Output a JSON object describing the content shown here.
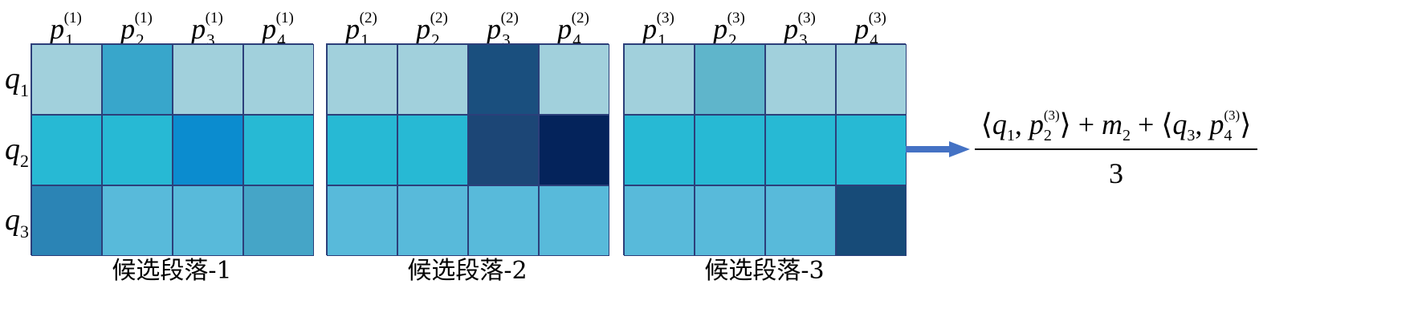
{
  "matrices": [
    {
      "caption": "候选段落-1",
      "headers": [
        {
          "base": "p",
          "sub": "1",
          "sup": "(1)"
        },
        {
          "base": "p",
          "sub": "2",
          "sup": "(1)"
        },
        {
          "base": "p",
          "sub": "3",
          "sup": "(1)"
        },
        {
          "base": "p",
          "sub": "4",
          "sup": "(1)"
        }
      ],
      "cells": [
        [
          "#a1d0dc",
          "#38a6cb",
          "#a1d0dc",
          "#a1d0dc"
        ],
        [
          "#27b9d4",
          "#27b9d4",
          "#0b8ccf",
          "#27b9d4"
        ],
        [
          "#2b84b5",
          "#58bada",
          "#58bada",
          "#45a5c7"
        ]
      ]
    },
    {
      "caption": "候选段落-2",
      "headers": [
        {
          "base": "p",
          "sub": "1",
          "sup": "(2)"
        },
        {
          "base": "p",
          "sub": "2",
          "sup": "(2)"
        },
        {
          "base": "p",
          "sub": "3",
          "sup": "(2)"
        },
        {
          "base": "p",
          "sub": "4",
          "sup": "(2)"
        }
      ],
      "cells": [
        [
          "#a1d0dc",
          "#a1d0dc",
          "#1a4f7e",
          "#a1d0dc"
        ],
        [
          "#27b9d4",
          "#27b9d4",
          "#1c4676",
          "#04235b"
        ],
        [
          "#58bada",
          "#58bada",
          "#58bada",
          "#58bada"
        ]
      ]
    },
    {
      "caption": "候选段落-3",
      "headers": [
        {
          "base": "p",
          "sub": "1",
          "sup": "(3)"
        },
        {
          "base": "p",
          "sub": "2",
          "sup": "(3)"
        },
        {
          "base": "p",
          "sub": "3",
          "sup": "(3)"
        },
        {
          "base": "p",
          "sub": "4",
          "sup": "(3)"
        }
      ],
      "cells": [
        [
          "#a1d0dc",
          "#5fb5cb",
          "#a1d0dc",
          "#a1d0dc"
        ],
        [
          "#27b9d4",
          "#27b9d4",
          "#27b9d4",
          "#27b9d4"
        ],
        [
          "#58bada",
          "#58bada",
          "#58bada",
          "#174b78"
        ]
      ]
    }
  ],
  "row_labels": [
    {
      "base": "q",
      "sub": "1"
    },
    {
      "base": "q",
      "sub": "2"
    },
    {
      "base": "q",
      "sub": "3"
    }
  ],
  "arrow_color": "#4472c4",
  "formula": {
    "numerator": {
      "open1": "⟨",
      "q1": "q",
      "q1_sub": "1",
      "sep1": ", ",
      "p1": "p",
      "p1_sub": "2",
      "p1_sup": "(3)",
      "close1": "⟩",
      "plus1": " + ",
      "m": "m",
      "m_sub": "2",
      "plus2": " + ",
      "open2": "⟨",
      "q2": "q",
      "q2_sub": "3",
      "sep2": ", ",
      "p2": "p",
      "p2_sub": "4",
      "p2_sup": "(3)",
      "close2": "⟩"
    },
    "denominator": "3"
  }
}
